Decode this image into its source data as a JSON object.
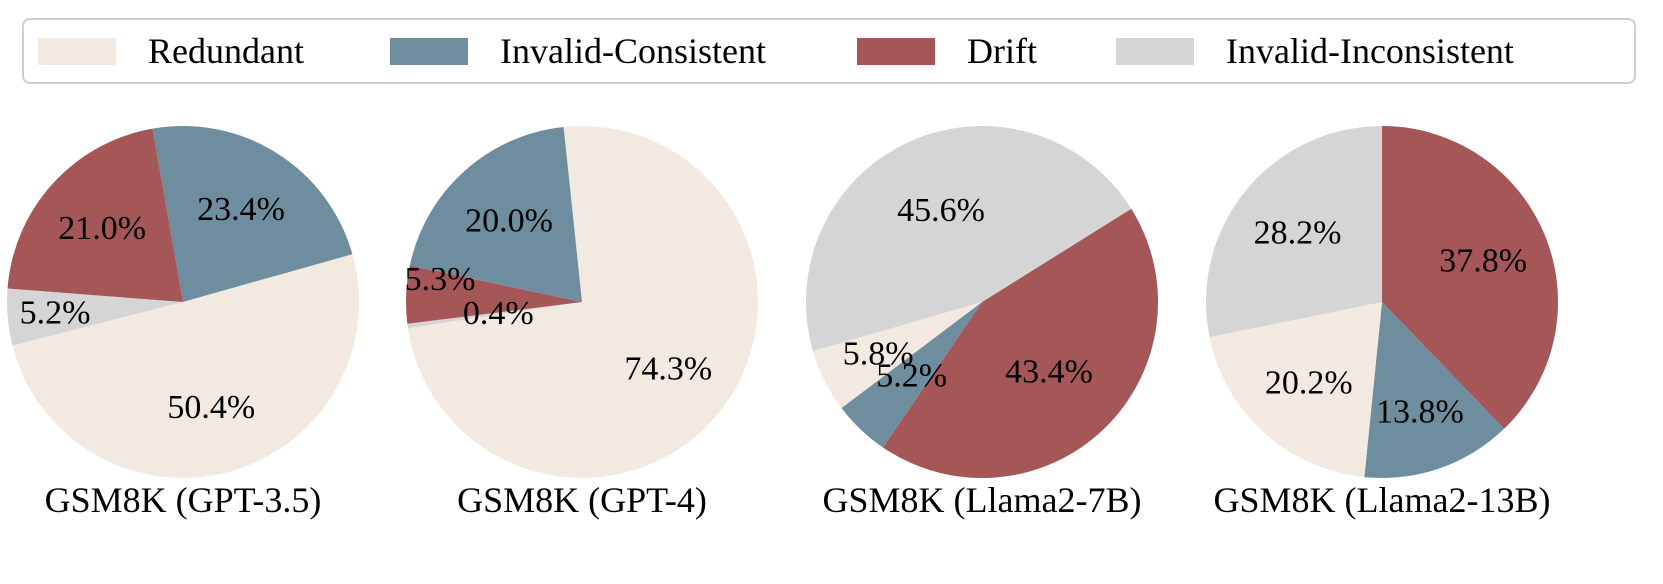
{
  "chart_data": {
    "type": "pie",
    "legend": {
      "placement": "top",
      "entries": [
        {
          "name": "Redundant",
          "color": "#f2e9e0"
        },
        {
          "name": "Invalid-Consistent",
          "color": "#6e8e9f"
        },
        {
          "name": "Drift",
          "color": "#a55656"
        },
        {
          "name": "Invalid-Inconsistent",
          "color": "#d4d5d4"
        }
      ]
    },
    "charts": [
      {
        "title": "GSM8K (GPT-3.5)",
        "start_angle_deg": 100,
        "slices": [
          {
            "category": "Invalid-Consistent",
            "value": 23.4,
            "label": "23.4%"
          },
          {
            "category": "Redundant",
            "value": 50.4,
            "label": "50.4%"
          },
          {
            "category": "Invalid-Inconsistent",
            "value": 5.2,
            "label": "5.2%"
          },
          {
            "category": "Drift",
            "value": 21.0,
            "label": "21.0%"
          }
        ]
      },
      {
        "title": "GSM8K (GPT-4)",
        "start_angle_deg": 96,
        "slices": [
          {
            "category": "Redundant",
            "value": 74.3,
            "label": "74.3%"
          },
          {
            "category": "Invalid-Inconsistent",
            "value": 0.4,
            "label": "0.4%"
          },
          {
            "category": "Drift",
            "value": 5.3,
            "label": "5.3%"
          },
          {
            "category": "Invalid-Consistent",
            "value": 20.0,
            "label": "20.0%"
          }
        ]
      },
      {
        "title": "GSM8K (Llama2-7B)",
        "start_angle_deg": 32,
        "slices": [
          {
            "category": "Drift",
            "value": 43.4,
            "label": "43.4%"
          },
          {
            "category": "Invalid-Consistent",
            "value": 5.2,
            "label": "5.2%"
          },
          {
            "category": "Redundant",
            "value": 5.8,
            "label": "5.8%"
          },
          {
            "category": "Invalid-Inconsistent",
            "value": 45.6,
            "label": "45.6%"
          }
        ]
      },
      {
        "title": "GSM8K (Llama2-13B)",
        "start_angle_deg": 90,
        "slices": [
          {
            "category": "Drift",
            "value": 37.8,
            "label": "37.8%"
          },
          {
            "category": "Invalid-Consistent",
            "value": 13.8,
            "label": "13.8%"
          },
          {
            "category": "Redundant",
            "value": 20.2,
            "label": "20.2%"
          },
          {
            "category": "Invalid-Inconsistent",
            "value": 28.2,
            "label": "28.2%"
          }
        ]
      }
    ]
  }
}
